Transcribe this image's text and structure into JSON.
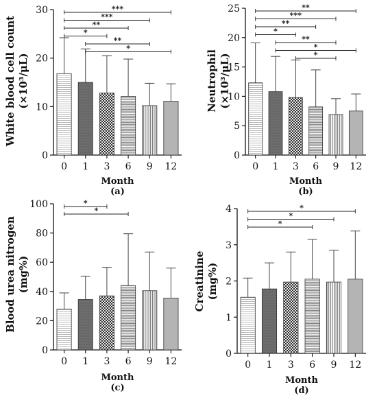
{
  "chart_data": [
    {
      "type": "bar",
      "panel_label": "(a)",
      "ylabel_lines": [
        "White blood cell count",
        "(×10³/μL)"
      ],
      "xlabel": "Month",
      "categories": [
        "0",
        "1",
        "3",
        "6",
        "9",
        "12"
      ],
      "values": [
        16.8,
        15.0,
        12.8,
        12.1,
        10.2,
        11.1
      ],
      "errors": [
        7.4,
        6.9,
        7.7,
        7.7,
        4.6,
        3.6
      ],
      "ylim": [
        0,
        30
      ],
      "yticks": [
        0,
        10,
        20,
        30
      ],
      "significance": [
        {
          "from": 0,
          "to": 5,
          "label": "***"
        },
        {
          "from": 0,
          "to": 4,
          "label": "***"
        },
        {
          "from": 0,
          "to": 3,
          "label": "**"
        },
        {
          "from": 0,
          "to": 2,
          "label": "*"
        },
        {
          "from": 1,
          "to": 4,
          "label": "**"
        },
        {
          "from": 1,
          "to": 5,
          "label": "*"
        }
      ]
    },
    {
      "type": "bar",
      "panel_label": "(b)",
      "ylabel_lines": [
        "Neutrophil",
        "(×10³/μL)"
      ],
      "xlabel": "Month",
      "categories": [
        "0",
        "1",
        "3",
        "6",
        "9",
        "12"
      ],
      "values": [
        12.3,
        10.8,
        9.8,
        8.2,
        6.9,
        7.5
      ],
      "errors": [
        6.8,
        6.0,
        6.4,
        6.3,
        2.7,
        2.9
      ],
      "ylim": [
        0,
        25
      ],
      "yticks": [
        0,
        5,
        10,
        15,
        20,
        25
      ],
      "significance": [
        {
          "from": 0,
          "to": 5,
          "label": "**"
        },
        {
          "from": 0,
          "to": 4,
          "label": "***"
        },
        {
          "from": 0,
          "to": 3,
          "label": "**"
        },
        {
          "from": 0,
          "to": 2,
          "label": "*"
        },
        {
          "from": 1,
          "to": 4,
          "label": "**"
        },
        {
          "from": 1,
          "to": 5,
          "label": "*"
        },
        {
          "from": 2,
          "to": 4,
          "label": "*"
        }
      ]
    },
    {
      "type": "bar",
      "panel_label": "(c)",
      "ylabel_lines": [
        "Blood urea nitrogen",
        "(mg%)"
      ],
      "xlabel": "Month",
      "categories": [
        "0",
        "1",
        "3",
        "6",
        "9",
        "12"
      ],
      "values": [
        28,
        34.5,
        37,
        44,
        40.5,
        35.5
      ],
      "errors": [
        11,
        16,
        19.5,
        35.5,
        26.5,
        20.5
      ],
      "ylim": [
        0,
        100
      ],
      "yticks": [
        0,
        20,
        40,
        60,
        80,
        100
      ],
      "significance": [
        {
          "from": 0,
          "to": 2,
          "label": "*"
        },
        {
          "from": 0,
          "to": 3,
          "label": "*"
        }
      ]
    },
    {
      "type": "bar",
      "panel_label": "(d)",
      "ylabel_lines": [
        "Creatinine",
        "(mg%)"
      ],
      "xlabel": "Month",
      "categories": [
        "0",
        "1",
        "3",
        "6",
        "9",
        "12"
      ],
      "values": [
        1.55,
        1.78,
        1.97,
        2.05,
        1.97,
        2.05
      ],
      "errors": [
        0.53,
        0.72,
        0.83,
        1.1,
        0.88,
        1.33
      ],
      "ylim": [
        0,
        4
      ],
      "yticks": [
        0,
        1,
        2,
        3,
        4
      ],
      "significance": [
        {
          "from": 0,
          "to": 5,
          "label": "*"
        },
        {
          "from": 0,
          "to": 4,
          "label": "*"
        },
        {
          "from": 0,
          "to": 3,
          "label": "*"
        }
      ]
    }
  ]
}
